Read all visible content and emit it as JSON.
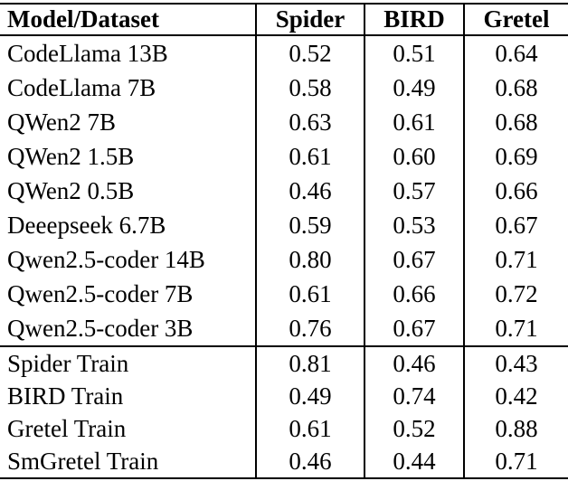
{
  "table": {
    "columns": [
      "Model/Dataset",
      "Spider",
      "BIRD",
      "Gretel"
    ],
    "model_rows": [
      {
        "model": "CodeLlama 13B",
        "spider": "0.52",
        "bird": "0.51",
        "gretel": "0.64"
      },
      {
        "model": "CodeLlama 7B",
        "spider": "0.58",
        "bird": "0.49",
        "gretel": "0.68"
      },
      {
        "model": "QWen2 7B",
        "spider": "0.63",
        "bird": "0.61",
        "gretel": "0.68"
      },
      {
        "model": "QWen2 1.5B",
        "spider": "0.61",
        "bird": "0.60",
        "gretel": "0.69"
      },
      {
        "model": "QWen2 0.5B",
        "spider": "0.46",
        "bird": "0.57",
        "gretel": "0.66"
      },
      {
        "model": "Deeepseek 6.7B",
        "spider": "0.59",
        "bird": "0.53",
        "gretel": "0.67"
      },
      {
        "model": "Qwen2.5-coder 14B",
        "spider": "0.80",
        "bird": "0.67",
        "gretel": "0.71"
      },
      {
        "model": "Qwen2.5-coder 7B",
        "spider": "0.61",
        "bird": "0.66",
        "gretel": "0.72"
      },
      {
        "model": "Qwen2.5-coder 3B",
        "spider": "0.76",
        "bird": "0.67",
        "gretel": "0.71"
      }
    ],
    "train_rows": [
      {
        "model": "Spider Train",
        "spider": "0.81",
        "bird": "0.46",
        "gretel": "0.43"
      },
      {
        "model": "BIRD Train",
        "spider": "0.49",
        "bird": "0.74",
        "gretel": "0.42"
      },
      {
        "model": "Gretel Train",
        "spider": "0.61",
        "bird": "0.52",
        "gretel": "0.88"
      },
      {
        "model": "SmGretel Train",
        "spider": "0.46",
        "bird": "0.44",
        "gretel": "0.71"
      }
    ]
  }
}
